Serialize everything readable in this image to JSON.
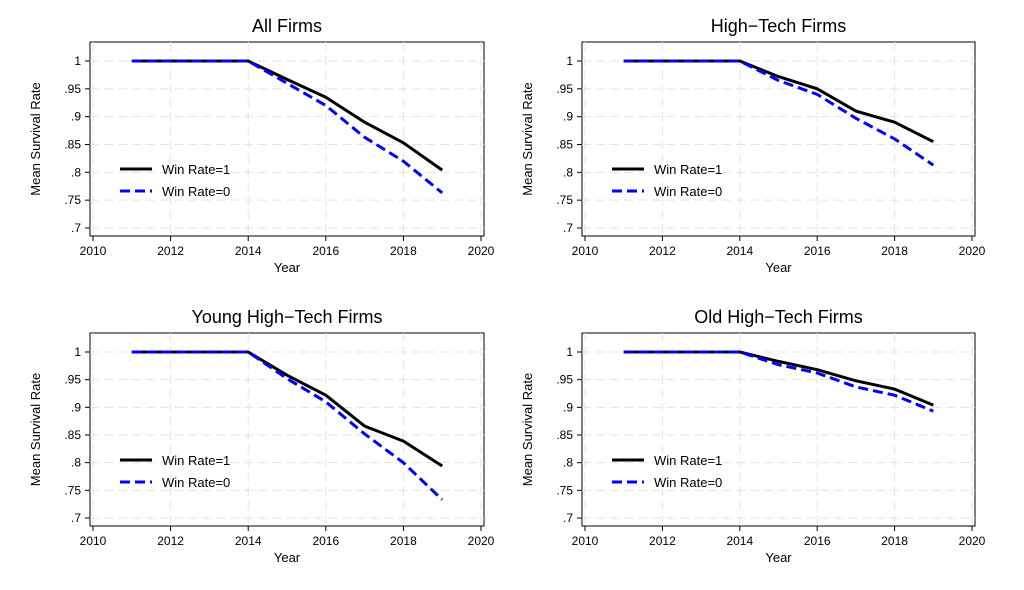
{
  "chart_data": [
    {
      "type": "line",
      "title": "All Firms",
      "xlabel": "Year",
      "ylabel": "Mean Survival Rate",
      "xlim": [
        2010,
        2020
      ],
      "ylim": [
        0.7,
        1.0
      ],
      "xticks": [
        "2010",
        "2012",
        "2014",
        "2016",
        "2018",
        "2020"
      ],
      "yticks": [
        "1",
        ".95",
        ".9",
        ".85",
        ".8",
        ".75",
        ".7"
      ],
      "grid": true,
      "legend_position": "bottom-left",
      "x": [
        2011,
        2012,
        2013,
        2014,
        2015,
        2016,
        2017,
        2018,
        2019
      ],
      "series": [
        {
          "name": "Win Rate=1",
          "color": "#000000",
          "style": "solid",
          "values": [
            1.0,
            1.0,
            1.0,
            1.0,
            0.967,
            0.935,
            0.89,
            0.853,
            0.804
          ]
        },
        {
          "name": "Win Rate=0",
          "color": "#0000ff",
          "style": "dashed",
          "values": [
            1.0,
            1.0,
            1.0,
            1.0,
            0.96,
            0.92,
            0.863,
            0.82,
            0.763
          ]
        }
      ]
    },
    {
      "type": "line",
      "title": "High−Tech Firms",
      "xlabel": "Year",
      "ylabel": "Mean Survival Rate",
      "xlim": [
        2010,
        2020
      ],
      "ylim": [
        0.7,
        1.0
      ],
      "xticks": [
        "2010",
        "2012",
        "2014",
        "2016",
        "2018",
        "2020"
      ],
      "yticks": [
        "1",
        ".95",
        ".9",
        ".85",
        ".8",
        ".75",
        ".7"
      ],
      "grid": true,
      "legend_position": "bottom-left",
      "x": [
        2011,
        2012,
        2013,
        2014,
        2015,
        2016,
        2017,
        2018,
        2019
      ],
      "series": [
        {
          "name": "Win Rate=1",
          "color": "#000000",
          "style": "solid",
          "values": [
            1.0,
            1.0,
            1.0,
            1.0,
            0.972,
            0.95,
            0.91,
            0.89,
            0.855
          ]
        },
        {
          "name": "Win Rate=0",
          "color": "#0000ff",
          "style": "dashed",
          "values": [
            1.0,
            1.0,
            1.0,
            1.0,
            0.965,
            0.94,
            0.897,
            0.86,
            0.813
          ]
        }
      ]
    },
    {
      "type": "line",
      "title": "Young High−Tech Firms",
      "xlabel": "Year",
      "ylabel": "Mean Survival Rate",
      "xlim": [
        2010,
        2020
      ],
      "ylim": [
        0.7,
        1.0
      ],
      "xticks": [
        "2010",
        "2012",
        "2014",
        "2016",
        "2018",
        "2020"
      ],
      "yticks": [
        "1",
        ".95",
        ".9",
        ".85",
        ".8",
        ".75",
        ".7"
      ],
      "grid": true,
      "legend_position": "bottom-left",
      "x": [
        2011,
        2012,
        2013,
        2014,
        2015,
        2016,
        2017,
        2018,
        2019
      ],
      "series": [
        {
          "name": "Win Rate=1",
          "color": "#000000",
          "style": "solid",
          "values": [
            1.0,
            1.0,
            1.0,
            1.0,
            0.958,
            0.922,
            0.866,
            0.839,
            0.794
          ]
        },
        {
          "name": "Win Rate=0",
          "color": "#0000ff",
          "style": "dashed",
          "values": [
            1.0,
            1.0,
            1.0,
            1.0,
            0.952,
            0.91,
            0.852,
            0.8,
            0.733
          ]
        }
      ]
    },
    {
      "type": "line",
      "title": "Old High−Tech Firms",
      "xlabel": "Year",
      "ylabel": "Mean Survival Rate",
      "xlim": [
        2010,
        2020
      ],
      "ylim": [
        0.7,
        1.0
      ],
      "xticks": [
        "2010",
        "2012",
        "2014",
        "2016",
        "2018",
        "2020"
      ],
      "yticks": [
        "1",
        ".95",
        ".9",
        ".85",
        ".8",
        ".75",
        ".7"
      ],
      "grid": true,
      "legend_position": "bottom-left",
      "x": [
        2011,
        2012,
        2013,
        2014,
        2015,
        2016,
        2017,
        2018,
        2019
      ],
      "series": [
        {
          "name": "Win Rate=1",
          "color": "#000000",
          "style": "solid",
          "values": [
            1.0,
            1.0,
            1.0,
            1.0,
            0.983,
            0.968,
            0.948,
            0.933,
            0.904
          ]
        },
        {
          "name": "Win Rate=0",
          "color": "#0000ff",
          "style": "dashed",
          "values": [
            1.0,
            1.0,
            1.0,
            1.0,
            0.977,
            0.962,
            0.937,
            0.922,
            0.893
          ]
        }
      ]
    }
  ]
}
